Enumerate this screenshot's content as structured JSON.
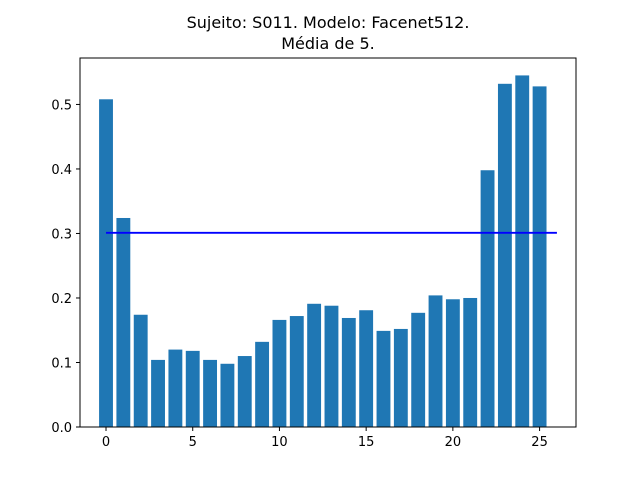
{
  "chart_data": {
    "type": "bar",
    "title_line1": "Sujeito: S011. Modelo: Facenet512.",
    "title_line2": "Média de 5.",
    "xlabel": "",
    "ylabel": "",
    "x": [
      0,
      1,
      2,
      3,
      4,
      5,
      6,
      7,
      8,
      9,
      10,
      11,
      12,
      13,
      14,
      15,
      16,
      17,
      18,
      19,
      20,
      21,
      22,
      23,
      24,
      25
    ],
    "values": [
      0.508,
      0.324,
      0.174,
      0.104,
      0.12,
      0.118,
      0.104,
      0.098,
      0.11,
      0.132,
      0.166,
      0.172,
      0.191,
      0.188,
      0.169,
      0.181,
      0.149,
      0.152,
      0.177,
      0.204,
      0.198,
      0.2,
      0.398,
      0.532,
      0.545,
      0.528
    ],
    "bar_color": "#1f77b4",
    "threshold": {
      "value": 0.301,
      "x_start": 0,
      "x_end": 26,
      "color": "#0000ff"
    },
    "xlim": [
      -1.5,
      27.1
    ],
    "ylim": [
      0,
      0.572
    ],
    "xticks": [
      0,
      5,
      10,
      15,
      20,
      25
    ],
    "xtick_labels": [
      "0",
      "5",
      "10",
      "15",
      "20",
      "25"
    ],
    "yticks": [
      0.0,
      0.1,
      0.2,
      0.3,
      0.4,
      0.5
    ],
    "ytick_labels": [
      "0.0",
      "0.1",
      "0.2",
      "0.3",
      "0.4",
      "0.5"
    ],
    "grid": false,
    "legend": "none"
  }
}
